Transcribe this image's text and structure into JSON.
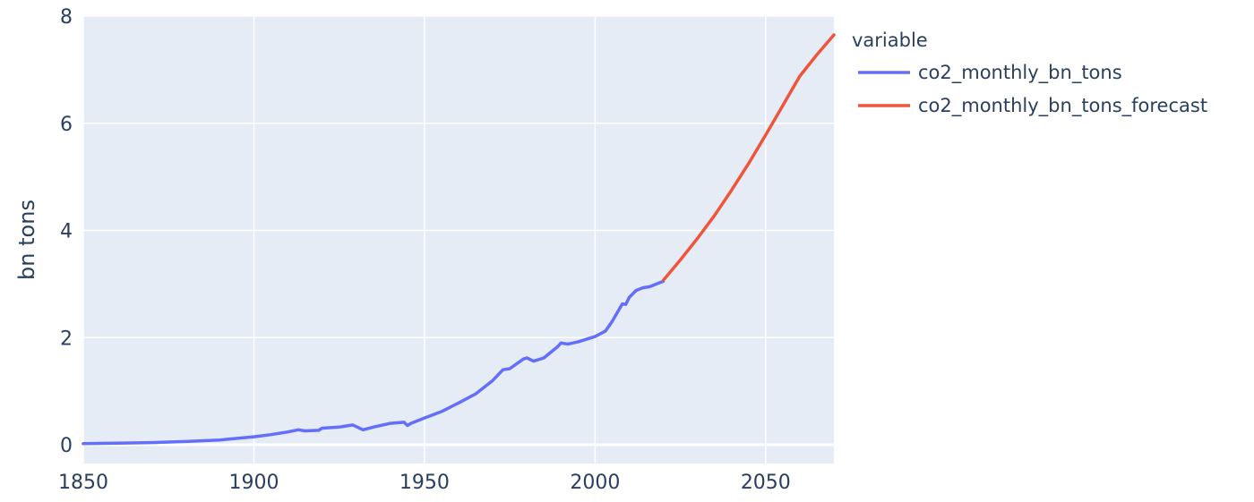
{
  "chart_data": {
    "type": "line",
    "ylabel": "bn tons",
    "xlabel": "",
    "xlim": [
      1850,
      2070
    ],
    "ylim": [
      -0.35,
      8.0
    ],
    "x_ticks": [
      1850,
      1900,
      1950,
      2000,
      2050
    ],
    "y_ticks": [
      0,
      2,
      4,
      6,
      8
    ],
    "grid": true,
    "legend_title": "variable",
    "legend_position": "right",
    "colors": {
      "plot_bg": "#e5ecf6",
      "grid": "#ffffff",
      "text": "#2a3f5f"
    },
    "series": [
      {
        "name": "co2_monthly_bn_tons",
        "color": "#636efa",
        "x": [
          1850,
          1860,
          1870,
          1880,
          1890,
          1900,
          1905,
          1910,
          1913,
          1915,
          1919,
          1920,
          1925,
          1929,
          1932,
          1935,
          1940,
          1944,
          1945,
          1946,
          1950,
          1955,
          1960,
          1965,
          1970,
          1973,
          1975,
          1979,
          1980,
          1982,
          1985,
          1989,
          1990,
          1992,
          1995,
          2000,
          2003,
          2005,
          2008,
          2009,
          2010,
          2012,
          2014,
          2016,
          2018,
          2020
        ],
        "y": [
          0.02,
          0.03,
          0.04,
          0.06,
          0.09,
          0.15,
          0.19,
          0.24,
          0.28,
          0.26,
          0.27,
          0.31,
          0.33,
          0.37,
          0.28,
          0.33,
          0.4,
          0.42,
          0.36,
          0.4,
          0.5,
          0.62,
          0.78,
          0.95,
          1.2,
          1.4,
          1.42,
          1.6,
          1.62,
          1.56,
          1.62,
          1.83,
          1.9,
          1.88,
          1.92,
          2.02,
          2.12,
          2.3,
          2.63,
          2.62,
          2.75,
          2.88,
          2.93,
          2.95,
          3.0,
          3.05
        ]
      },
      {
        "name": "co2_monthly_bn_tons_forecast",
        "color": "#ef553b",
        "x": [
          2020,
          2025,
          2030,
          2035,
          2040,
          2045,
          2050,
          2055,
          2060,
          2065,
          2070
        ],
        "y": [
          3.07,
          3.45,
          3.85,
          4.28,
          4.75,
          5.25,
          5.78,
          6.33,
          6.88,
          7.28,
          7.65
        ]
      }
    ]
  }
}
